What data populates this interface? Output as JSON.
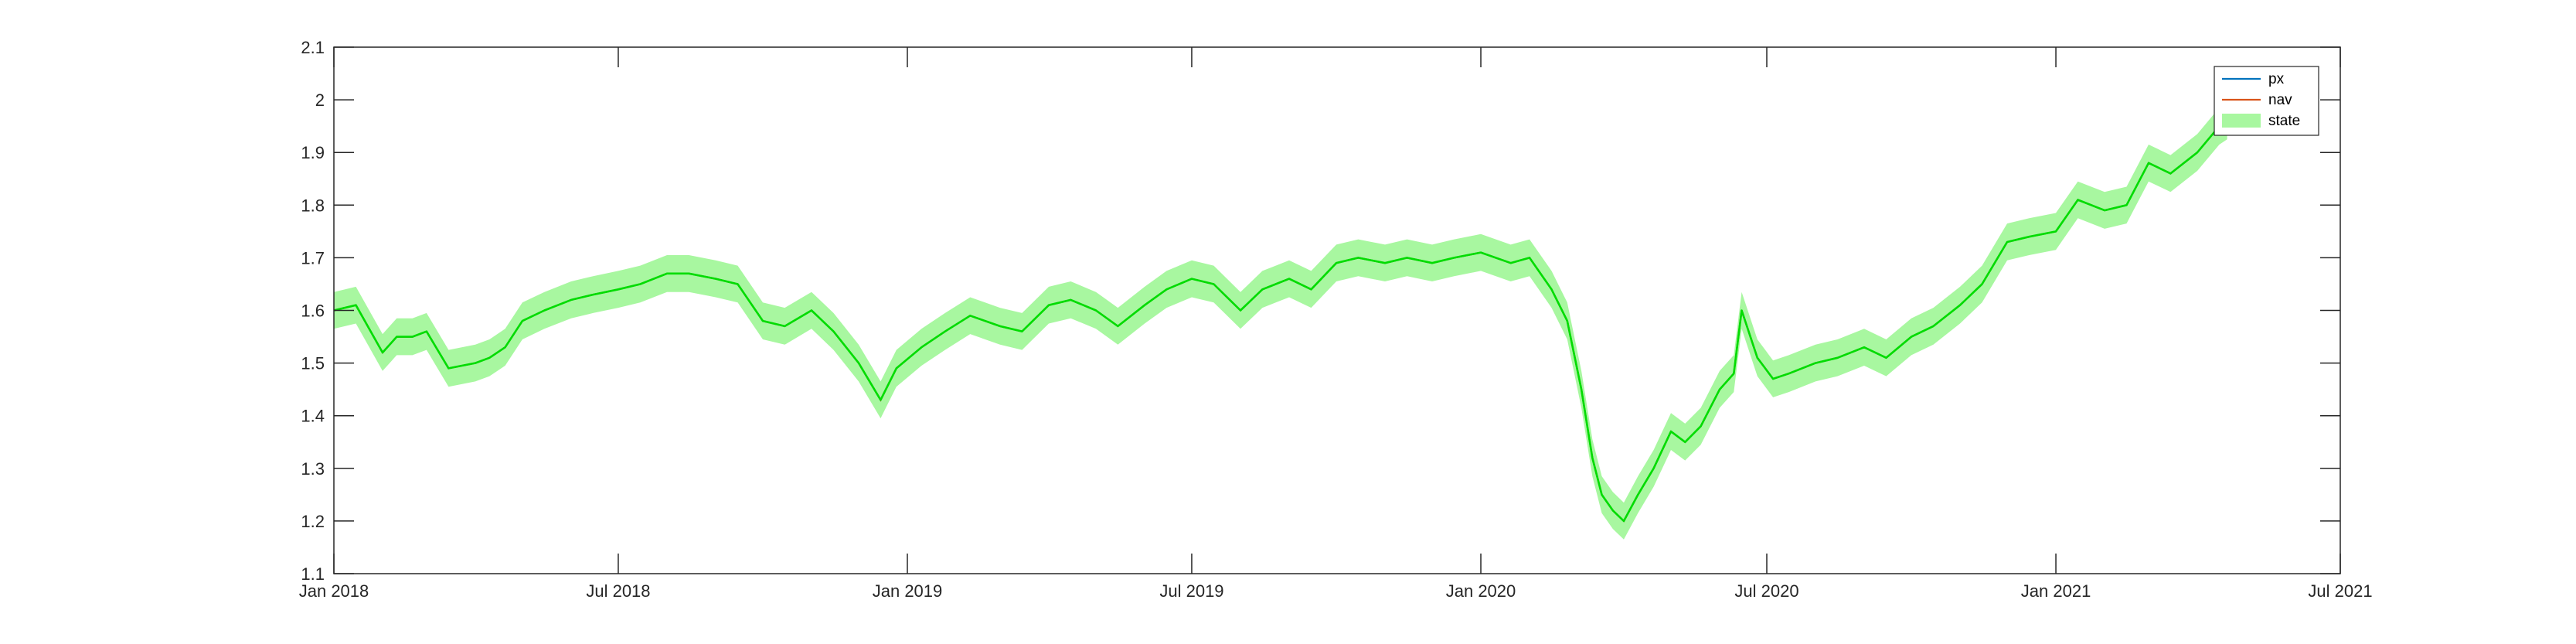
{
  "chart_data": {
    "type": "line",
    "title": "",
    "xlabel": "",
    "ylabel": "",
    "xlim": [
      "2018-01-01",
      "2021-07-01"
    ],
    "ylim": [
      1.1,
      2.1
    ],
    "grid": false,
    "legend_position": "top-right",
    "x_ticks": [
      {
        "date": "2018-01-01",
        "label": "Jan 2018"
      },
      {
        "date": "2018-07-01",
        "label": "Jul 2018"
      },
      {
        "date": "2019-01-01",
        "label": "Jan 2019"
      },
      {
        "date": "2019-07-01",
        "label": "Jul 2019"
      },
      {
        "date": "2020-01-01",
        "label": "Jan 2020"
      },
      {
        "date": "2020-07-01",
        "label": "Jul 2020"
      },
      {
        "date": "2021-01-01",
        "label": "Jan 2021"
      },
      {
        "date": "2021-07-01",
        "label": "Jul 2021"
      }
    ],
    "y_ticks": [
      {
        "value": 1.1,
        "label": "1.1"
      },
      {
        "value": 1.2,
        "label": "1.2"
      },
      {
        "value": 1.3,
        "label": "1.3"
      },
      {
        "value": 1.4,
        "label": "1.4"
      },
      {
        "value": 1.5,
        "label": "1.5"
      },
      {
        "value": 1.6,
        "label": "1.6"
      },
      {
        "value": 1.7,
        "label": "1.7"
      },
      {
        "value": 1.8,
        "label": "1.8"
      },
      {
        "value": 1.9,
        "label": "1.9"
      },
      {
        "value": 2.0,
        "label": "2"
      },
      {
        "value": 2.1,
        "label": "2.1"
      }
    ],
    "state_band_halfwidth": 0.035,
    "series": [
      {
        "name": "px",
        "color": "#0072BD",
        "kind": "line"
      },
      {
        "name": "nav",
        "color": "#D95319",
        "kind": "line"
      },
      {
        "name": "state",
        "color": "#00DD00",
        "band_color": "#A8F7A0",
        "kind": "line+band"
      }
    ],
    "x": [
      "2018-01-01",
      "2018-01-15",
      "2018-02-01",
      "2018-02-10",
      "2018-02-20",
      "2018-03-01",
      "2018-03-15",
      "2018-04-01",
      "2018-04-10",
      "2018-04-20",
      "2018-05-01",
      "2018-05-15",
      "2018-06-01",
      "2018-06-15",
      "2018-07-01",
      "2018-07-15",
      "2018-08-01",
      "2018-08-15",
      "2018-09-01",
      "2018-09-15",
      "2018-10-01",
      "2018-10-15",
      "2018-11-01",
      "2018-11-15",
      "2018-12-01",
      "2018-12-15",
      "2018-12-25",
      "2019-01-10",
      "2019-01-25",
      "2019-02-10",
      "2019-03-01",
      "2019-03-15",
      "2019-04-01",
      "2019-04-15",
      "2019-05-01",
      "2019-05-15",
      "2019-06-01",
      "2019-06-15",
      "2019-07-01",
      "2019-07-15",
      "2019-08-01",
      "2019-08-15",
      "2019-09-01",
      "2019-09-15",
      "2019-10-01",
      "2019-10-15",
      "2019-11-01",
      "2019-11-15",
      "2019-12-01",
      "2019-12-15",
      "2020-01-01",
      "2020-01-20",
      "2020-02-01",
      "2020-02-15",
      "2020-02-25",
      "2020-03-05",
      "2020-03-12",
      "2020-03-18",
      "2020-03-25",
      "2020-04-01",
      "2020-04-10",
      "2020-04-20",
      "2020-05-01",
      "2020-05-10",
      "2020-05-20",
      "2020-06-01",
      "2020-06-10",
      "2020-06-15",
      "2020-06-25",
      "2020-07-05",
      "2020-07-15",
      "2020-08-01",
      "2020-08-15",
      "2020-09-01",
      "2020-09-15",
      "2020-10-01",
      "2020-10-15",
      "2020-11-01",
      "2020-11-15",
      "2020-12-01",
      "2020-12-15",
      "2021-01-01",
      "2021-01-15",
      "2021-02-01",
      "2021-02-15",
      "2021-03-01",
      "2021-03-15",
      "2021-04-01",
      "2021-04-15",
      "2021-04-20"
    ],
    "y": [
      1.6,
      1.61,
      1.52,
      1.55,
      1.55,
      1.56,
      1.49,
      1.5,
      1.51,
      1.53,
      1.58,
      1.6,
      1.62,
      1.63,
      1.64,
      1.65,
      1.67,
      1.67,
      1.66,
      1.65,
      1.58,
      1.57,
      1.6,
      1.56,
      1.5,
      1.43,
      1.49,
      1.53,
      1.56,
      1.59,
      1.57,
      1.56,
      1.61,
      1.62,
      1.6,
      1.57,
      1.61,
      1.64,
      1.66,
      1.65,
      1.6,
      1.64,
      1.66,
      1.64,
      1.69,
      1.7,
      1.69,
      1.7,
      1.69,
      1.7,
      1.71,
      1.69,
      1.7,
      1.64,
      1.58,
      1.45,
      1.32,
      1.25,
      1.22,
      1.2,
      1.25,
      1.3,
      1.37,
      1.35,
      1.38,
      1.45,
      1.48,
      1.6,
      1.51,
      1.47,
      1.48,
      1.5,
      1.51,
      1.53,
      1.51,
      1.55,
      1.57,
      1.61,
      1.65,
      1.73,
      1.74,
      1.75,
      1.81,
      1.79,
      1.8,
      1.88,
      1.86,
      1.9,
      1.95,
      1.96
    ]
  }
}
